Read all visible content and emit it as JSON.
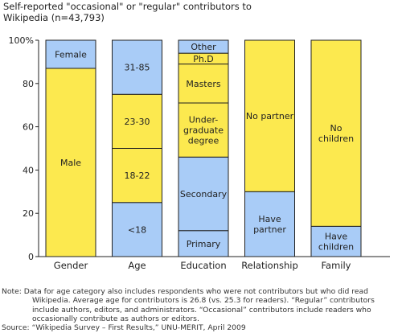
{
  "chart_data": {
    "type": "bar",
    "stacked": true,
    "title": "Self-reported \"occasional\" or \"regular\" contributors to Wikipedia (n=43,793)",
    "categories": [
      "Gender",
      "Age",
      "Education",
      "Relationship",
      "Family"
    ],
    "ylim": [
      0,
      100
    ],
    "yticks": [
      "0",
      "20",
      "40",
      "60",
      "80",
      "100%"
    ],
    "ytick_values": [
      0,
      20,
      40,
      60,
      80,
      100
    ],
    "grid": false,
    "colors": {
      "yellow": "#FCE94F",
      "blue": "#A9CCF7",
      "outline": "#222222"
    },
    "segments": [
      [
        {
          "label": "Male",
          "value": 87,
          "color": "yellow"
        },
        {
          "label": "Female",
          "value": 13,
          "color": "blue"
        }
      ],
      [
        {
          "label": "<18",
          "value": 25,
          "color": "blue"
        },
        {
          "label": "18-22",
          "value": 25,
          "color": "yellow"
        },
        {
          "label": "23-30",
          "value": 25,
          "color": "yellow"
        },
        {
          "label": "31-85",
          "value": 25,
          "color": "blue"
        }
      ],
      [
        {
          "label": "Primary",
          "value": 12,
          "color": "blue"
        },
        {
          "label": "Secondary",
          "value": 34,
          "color": "blue"
        },
        {
          "label": "Under-graduate degree",
          "lines": [
            "Under-",
            "graduate",
            "degree"
          ],
          "value": 25,
          "color": "yellow"
        },
        {
          "label": "Masters",
          "value": 18,
          "color": "yellow"
        },
        {
          "label": "Ph.D",
          "value": 5,
          "color": "yellow"
        },
        {
          "label": "Other",
          "value": 6,
          "color": "blue"
        }
      ],
      [
        {
          "label": "Have partner",
          "lines": [
            "Have",
            "partner"
          ],
          "value": 30,
          "color": "blue"
        },
        {
          "label": "No partner",
          "value": 70,
          "color": "yellow"
        }
      ],
      [
        {
          "label": "Have children",
          "lines": [
            "Have",
            "children"
          ],
          "value": 14,
          "color": "blue"
        },
        {
          "label": "No children",
          "lines": [
            "No",
            "children"
          ],
          "value": 86,
          "color": "yellow"
        }
      ]
    ]
  },
  "title_line1": "Self-reported \"occasional\" or \"regular\" contributors to",
  "title_line2": "Wikipedia (n=43,793)",
  "note_line1": "Note: Data for age category also includes respondents who were not contributors but who did read",
  "note_rest": "Wikipedia. Average age for contributors is 26.8 (vs. 25.3 for readers). “Regular” contributors include authors, editors, and administrators. “Occasional” contributors include readers who occasionally contribute as authors or editors.",
  "source": "Source: “Wikipedia Survey – First Results,” UNU-MERIT, April 2009"
}
